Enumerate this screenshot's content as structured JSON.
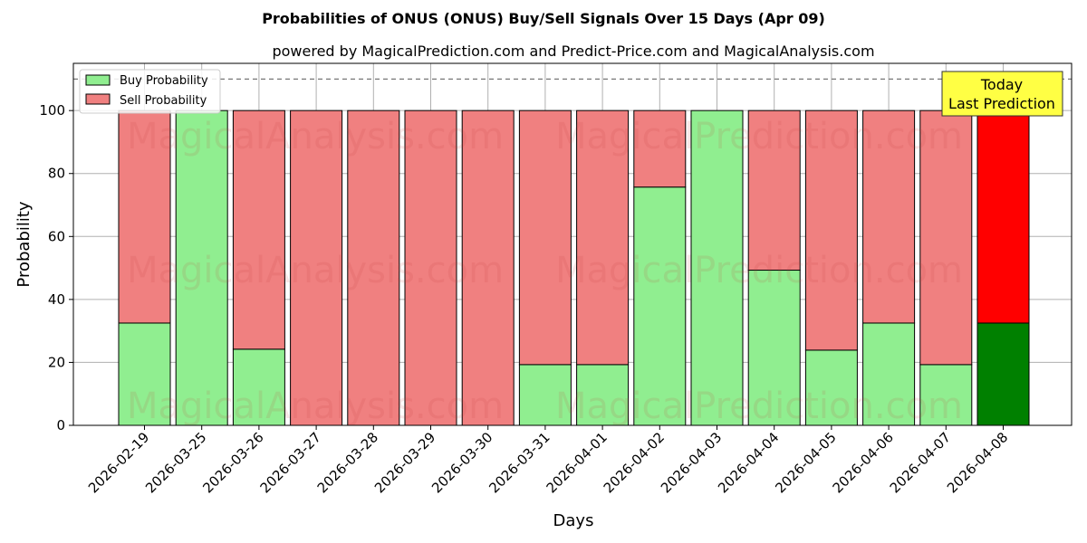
{
  "chart_data": {
    "type": "bar",
    "title": "Probabilities of ONUS (ONUS) Buy/Sell Signals Over 15 Days (Apr 09)",
    "subtitle": "powered by MagicalPrediction.com and Predict-Price.com and MagicalAnalysis.com",
    "xlabel": "Days",
    "ylabel": "Probability",
    "ylim": [
      0,
      115
    ],
    "yticks": [
      0,
      20,
      40,
      60,
      80,
      100
    ],
    "reference_line": 110,
    "grid": true,
    "legend_position": "top-left",
    "categories": [
      "2026-02-19",
      "2026-03-25",
      "2026-03-26",
      "2026-03-27",
      "2026-03-28",
      "2026-03-29",
      "2026-03-30",
      "2026-03-31",
      "2026-04-01",
      "2026-04-02",
      "2026-04-03",
      "2026-04-04",
      "2026-04-05",
      "2026-04-06",
      "2026-04-07",
      "2026-04-08"
    ],
    "series": [
      {
        "name": "Buy Probability",
        "color": "#90ee90",
        "highlight_color": "#008000",
        "values": [
          32.5,
          100,
          24.2,
          0,
          0,
          0,
          0,
          19.3,
          19.3,
          75.7,
          100,
          49.3,
          23.9,
          32.5,
          19.3,
          32.5
        ]
      },
      {
        "name": "Sell Probability",
        "color": "#f08080",
        "highlight_color": "#ff0000",
        "values": [
          67.5,
          0,
          75.8,
          100,
          100,
          100,
          100,
          80.7,
          80.7,
          24.3,
          0,
          50.7,
          76.1,
          67.5,
          80.7,
          67.5
        ]
      }
    ],
    "highlight_index": 15,
    "annotation": {
      "lines": [
        "Today",
        "Last Prediction"
      ],
      "color": "#ffff44"
    },
    "watermarks": [
      "MagicalAnalysis.com",
      "MagicalPrediction.com"
    ]
  }
}
